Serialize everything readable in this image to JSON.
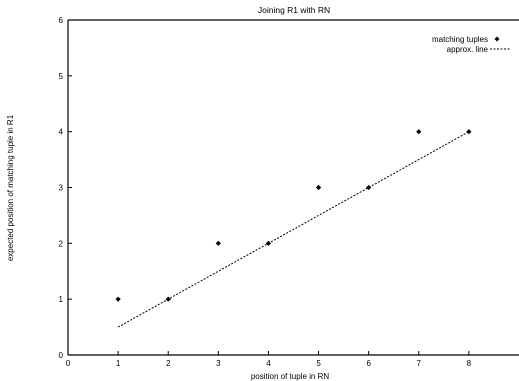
{
  "chart_data": {
    "type": "scatter",
    "title": "Joining R1 with RN",
    "xlabel": "position of tuple in RN",
    "ylabel": "expected position of matching tuple in R1",
    "xlim": [
      0,
      9
    ],
    "ylim": [
      0,
      6
    ],
    "x_ticks": [
      0,
      1,
      2,
      3,
      4,
      5,
      6,
      7,
      8
    ],
    "y_ticks": [
      0,
      1,
      2,
      3,
      4,
      5,
      6
    ],
    "grid": false,
    "legend_position": "top-right",
    "series": [
      {
        "name": "matching tuples",
        "kind": "points",
        "x": [
          1,
          2,
          3,
          4,
          5,
          6,
          7,
          8
        ],
        "y": [
          1,
          1,
          2,
          2,
          3,
          3,
          4,
          4
        ]
      },
      {
        "name": "approx. line",
        "kind": "line",
        "x": [
          1,
          8
        ],
        "y": [
          0.5,
          4
        ]
      }
    ]
  }
}
